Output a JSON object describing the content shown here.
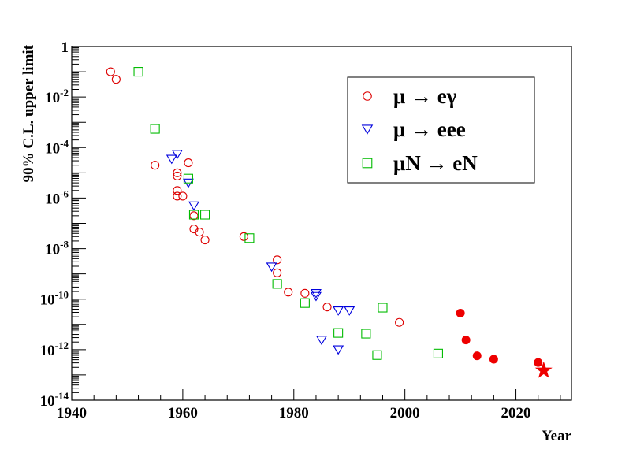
{
  "chart_data": {
    "type": "scatter",
    "xlabel": "Year",
    "ylabel": "90% C.L. upper limit",
    "xlim": [
      1940,
      2030
    ],
    "ylim_log10": [
      -14,
      0
    ],
    "x_scale": "linear",
    "y_scale": "log",
    "x_ticks": [
      {
        "value": 1940,
        "label": "1940"
      },
      {
        "value": 1960,
        "label": "1960"
      },
      {
        "value": 1980,
        "label": "1980"
      },
      {
        "value": 2000,
        "label": "2000"
      },
      {
        "value": 2020,
        "label": "2020"
      }
    ],
    "y_ticks": [
      {
        "exp": 0,
        "base": "1",
        "sup": ""
      },
      {
        "exp": -2,
        "base": "10",
        "sup": "-2"
      },
      {
        "exp": -4,
        "base": "10",
        "sup": "-4"
      },
      {
        "exp": -6,
        "base": "10",
        "sup": "-6"
      },
      {
        "exp": -8,
        "base": "10",
        "sup": "-8"
      },
      {
        "exp": -10,
        "base": "10",
        "sup": "-10"
      },
      {
        "exp": -12,
        "base": "10",
        "sup": "-12"
      },
      {
        "exp": -14,
        "base": "10",
        "sup": "-14"
      }
    ],
    "legend_position": "top-right",
    "grid": false,
    "series": [
      {
        "name": "μ → eγ",
        "marker": "open-circle",
        "color": "#dd0000",
        "points": [
          {
            "x": 1947,
            "y": 0.1
          },
          {
            "x": 1948,
            "y": 0.05
          },
          {
            "x": 1955,
            "y": 2e-05
          },
          {
            "x": 1959,
            "y": 1e-05
          },
          {
            "x": 1959,
            "y": 7.5e-06
          },
          {
            "x": 1959,
            "y": 2e-06
          },
          {
            "x": 1959,
            "y": 1.2e-06
          },
          {
            "x": 1960,
            "y": 1.2e-06
          },
          {
            "x": 1961,
            "y": 2.5e-05
          },
          {
            "x": 1962,
            "y": 2e-07
          },
          {
            "x": 1962,
            "y": 6e-08
          },
          {
            "x": 1963,
            "y": 4.5e-08
          },
          {
            "x": 1964,
            "y": 2.2e-08
          },
          {
            "x": 1971,
            "y": 3e-08
          },
          {
            "x": 1977,
            "y": 3.6e-09
          },
          {
            "x": 1977,
            "y": 1.1e-09
          },
          {
            "x": 1979,
            "y": 1.9e-10
          },
          {
            "x": 1982,
            "y": 1.7e-10
          },
          {
            "x": 1986,
            "y": 4.9e-11
          },
          {
            "x": 1999,
            "y": 1.2e-11
          }
        ]
      },
      {
        "name": "μ → eee",
        "marker": "open-triangle-down",
        "color": "#0000dd",
        "points": [
          {
            "x": 1958,
            "y": 3.5e-05
          },
          {
            "x": 1959,
            "y": 5.5e-05
          },
          {
            "x": 1961,
            "y": 4e-06
          },
          {
            "x": 1962,
            "y": 5e-07
          },
          {
            "x": 1976,
            "y": 1.9e-09
          },
          {
            "x": 1984,
            "y": 1.7e-10
          },
          {
            "x": 1984,
            "y": 1.3e-10
          },
          {
            "x": 1985,
            "y": 2.4e-12
          },
          {
            "x": 1988,
            "y": 3.5e-11
          },
          {
            "x": 1988,
            "y": 1e-12
          },
          {
            "x": 1990,
            "y": 3.5e-11
          }
        ]
      },
      {
        "name": "μN → eN",
        "marker": "open-square",
        "color": "#00bb00",
        "points": [
          {
            "x": 1952,
            "y": 0.1
          },
          {
            "x": 1955,
            "y": 0.00055
          },
          {
            "x": 1961,
            "y": 5.9e-06
          },
          {
            "x": 1962,
            "y": 2.2e-07
          },
          {
            "x": 1964,
            "y": 2.2e-07
          },
          {
            "x": 1972,
            "y": 2.6e-08
          },
          {
            "x": 1977,
            "y": 4e-10
          },
          {
            "x": 1982,
            "y": 7e-11
          },
          {
            "x": 1988,
            "y": 4.6e-12
          },
          {
            "x": 1993,
            "y": 4.3e-12
          },
          {
            "x": 1995,
            "y": 6.1e-13
          },
          {
            "x": 1996,
            "y": 4.6e-11
          },
          {
            "x": 2006,
            "y": 7e-13
          }
        ]
      },
      {
        "marker": "filled-circle",
        "color": "#ee0000",
        "points": [
          {
            "x": 2010,
            "y": 2.8e-11
          },
          {
            "x": 2011,
            "y": 2.4e-12
          },
          {
            "x": 2013,
            "y": 5.7e-13
          },
          {
            "x": 2016,
            "y": 4.2e-13
          },
          {
            "x": 2024,
            "y": 3.1e-13
          }
        ]
      },
      {
        "marker": "filled-star",
        "color": "#ee0000",
        "points": [
          {
            "x": 2025,
            "y": 1.5e-13
          }
        ]
      }
    ]
  }
}
